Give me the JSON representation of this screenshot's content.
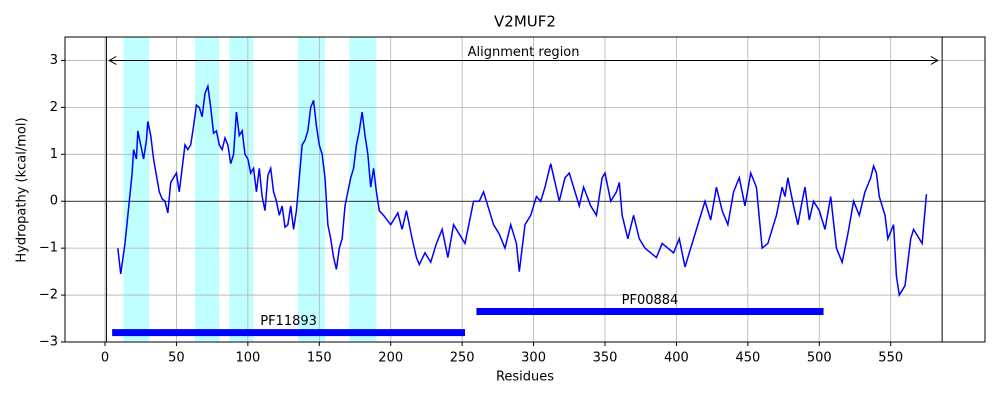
{
  "chart_data": {
    "type": "line",
    "title": "V2MUF2",
    "xlabel": "Residues",
    "ylabel": "Hydropathy (kcal/mol)",
    "xlim": [
      -28,
      616
    ],
    "ylim": [
      -3,
      3.5
    ],
    "xticks": [
      0,
      50,
      100,
      150,
      200,
      250,
      300,
      350,
      400,
      450,
      500,
      550
    ],
    "yticks": [
      {
        "value": -3,
        "label": "−3"
      },
      {
        "value": -2,
        "label": "−2"
      },
      {
        "value": -1,
        "label": "−1"
      },
      0,
      1,
      2,
      3
    ],
    "grid": true,
    "series": [
      {
        "color": "#0000ff",
        "x": [
          9,
          11,
          14,
          16,
          19,
          20,
          22,
          23,
          25,
          27,
          29,
          30,
          32,
          34,
          36,
          38,
          40,
          42,
          44,
          46,
          48,
          50,
          52,
          54,
          56,
          58,
          60,
          62,
          64,
          66,
          68,
          70,
          72,
          74,
          76,
          78,
          80,
          82,
          84,
          86,
          88,
          90,
          92,
          94,
          96,
          98,
          100,
          102,
          104,
          106,
          108,
          110,
          112,
          114,
          116,
          118,
          120,
          122,
          124,
          126,
          128,
          130,
          132,
          134,
          136,
          138,
          140,
          142,
          144,
          146,
          148,
          150,
          152,
          154,
          156,
          158,
          160,
          162,
          164,
          166,
          168,
          170,
          172,
          174,
          176,
          178,
          180,
          182,
          184,
          186,
          188,
          190,
          192,
          195,
          200,
          205,
          208,
          211,
          215,
          218,
          220,
          224,
          228,
          232,
          236,
          240,
          244,
          248,
          252,
          256,
          258,
          262,
          265,
          268,
          272,
          276,
          280,
          284,
          288,
          290,
          294,
          298,
          302,
          305,
          308,
          312,
          315,
          318,
          322,
          325,
          328,
          332,
          335,
          340,
          344,
          348,
          350,
          354,
          358,
          360,
          362,
          366,
          370,
          374,
          378,
          382,
          386,
          390,
          394,
          398,
          402,
          406,
          410,
          414,
          418,
          420,
          424,
          428,
          432,
          436,
          440,
          444,
          448,
          452,
          456,
          460,
          464,
          468,
          470,
          474,
          476,
          478,
          482,
          485,
          488,
          490,
          493,
          496,
          500,
          504,
          508,
          512,
          516,
          520,
          524,
          528,
          532,
          536,
          538,
          540,
          542,
          546,
          548,
          552,
          554,
          556,
          560,
          564,
          566,
          570,
          572,
          575
        ],
        "values": [
          -1.0,
          -1.55,
          -0.9,
          -0.3,
          0.6,
          1.1,
          0.9,
          1.5,
          1.2,
          0.9,
          1.3,
          1.7,
          1.4,
          0.9,
          0.55,
          0.2,
          0.05,
          0.0,
          -0.25,
          0.4,
          0.5,
          0.6,
          0.2,
          0.7,
          1.2,
          1.1,
          1.2,
          1.6,
          2.05,
          2.0,
          1.8,
          2.3,
          2.45,
          2.0,
          1.45,
          1.5,
          1.2,
          1.1,
          1.35,
          1.2,
          0.8,
          1.0,
          1.9,
          1.4,
          1.5,
          1.0,
          0.9,
          0.6,
          0.7,
          0.2,
          0.7,
          0.1,
          -0.2,
          0.55,
          0.7,
          0.2,
          0.0,
          -0.3,
          -0.1,
          -0.55,
          -0.5,
          -0.1,
          -0.6,
          -0.2,
          0.5,
          1.2,
          1.3,
          1.5,
          2.0,
          2.15,
          1.6,
          1.2,
          1.0,
          0.5,
          -0.5,
          -0.8,
          -1.2,
          -1.45,
          -1.0,
          -0.8,
          -0.1,
          0.2,
          0.5,
          0.7,
          1.2,
          1.5,
          1.9,
          1.4,
          1.0,
          0.3,
          0.7,
          0.2,
          -0.2,
          -0.3,
          -0.5,
          -0.25,
          -0.6,
          -0.2,
          -0.8,
          -1.2,
          -1.35,
          -1.1,
          -1.3,
          -0.9,
          -0.6,
          -1.2,
          -0.5,
          -0.7,
          -0.9,
          -0.3,
          0.0,
          0.0,
          0.2,
          -0.1,
          -0.5,
          -0.7,
          -1.0,
          -0.5,
          -0.9,
          -1.5,
          -0.5,
          -0.3,
          0.1,
          0.0,
          0.3,
          0.8,
          0.4,
          0.0,
          0.5,
          0.6,
          0.3,
          -0.1,
          0.3,
          -0.1,
          -0.3,
          0.5,
          0.6,
          0.0,
          0.2,
          0.4,
          -0.3,
          -0.8,
          -0.3,
          -0.8,
          -1.0,
          -1.1,
          -1.2,
          -0.9,
          -1.0,
          -1.1,
          -0.8,
          -1.4,
          -1.0,
          -0.6,
          -0.2,
          0.0,
          -0.4,
          0.3,
          -0.2,
          -0.5,
          0.2,
          0.5,
          -0.1,
          0.6,
          0.3,
          -1.0,
          -0.9,
          -0.5,
          -0.3,
          0.3,
          0.1,
          0.5,
          -0.1,
          -0.5,
          0.0,
          0.3,
          -0.4,
          0.0,
          -0.2,
          -0.6,
          0.1,
          -1.0,
          -1.3,
          -0.7,
          0.0,
          -0.3,
          0.2,
          0.5,
          0.75,
          0.6,
          0.1,
          -0.3,
          -0.8,
          -0.5,
          -1.6,
          -2.0,
          -1.8,
          -0.8,
          -0.6,
          -0.8,
          -0.9,
          0.15
        ]
      }
    ],
    "zero_line": 0,
    "highlight_regions": [
      [
        13,
        31
      ],
      [
        63,
        80
      ],
      [
        87,
        104
      ],
      [
        135,
        154
      ],
      [
        171,
        190
      ]
    ],
    "highlight_color": "#c0ffff",
    "vlines": [
      1,
      586
    ],
    "annotation": {
      "text": "Alignment region",
      "start": 3,
      "end": 583,
      "y": 3
    },
    "domains": [
      {
        "name": "PF11893",
        "start": 5,
        "end": 252,
        "y": -2.8
      },
      {
        "name": "PF00884",
        "start": 260,
        "end": 503,
        "y": -2.35
      }
    ],
    "domain_color": "#0000ff"
  }
}
